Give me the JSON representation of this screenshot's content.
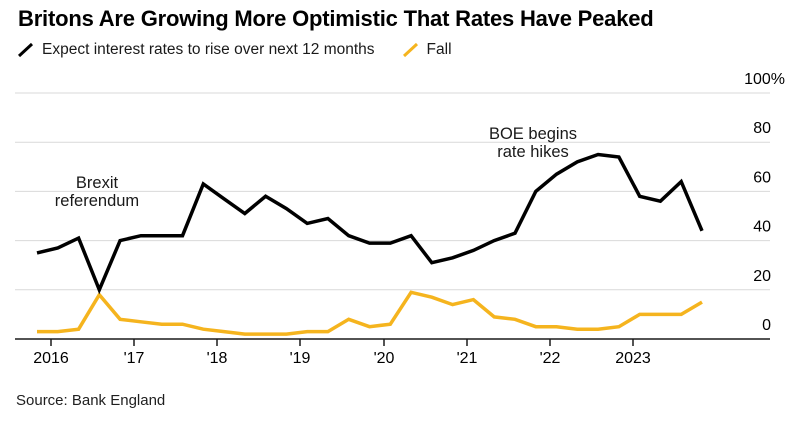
{
  "title": "Britons Are Growing More Optimistic That Rates Have Peaked",
  "legend": {
    "rise_label": "Expect interest rates to rise over next 12 months",
    "fall_label": "Fall"
  },
  "source": "Source: Bank England",
  "colors": {
    "rise_line": "#000000",
    "fall_line": "#F5B41E",
    "gridline": "#D9D9D9",
    "axis": "#1a1a1a",
    "text": "#1a1a1a"
  },
  "chart_data": {
    "type": "line",
    "title": "Britons Are Growing More Optimistic That Rates Have Peaked",
    "x": [
      "Nov 2015",
      "Feb 2016",
      "May 2016",
      "Aug 2016",
      "Nov 2016",
      "Feb 2017",
      "May 2017",
      "Aug 2017",
      "Nov 2017",
      "Feb 2018",
      "May 2018",
      "Aug 2018",
      "Nov 2018",
      "Feb 2019",
      "May 2019",
      "Aug 2019",
      "Nov 2019",
      "Feb 2020",
      "May 2020",
      "Aug 2020",
      "Nov 2020",
      "Feb 2021",
      "May 2021",
      "Aug 2021",
      "Nov 2021",
      "Feb 2022",
      "May 2022",
      "Aug 2022",
      "Nov 2022",
      "Feb 2023",
      "May 2023",
      "Aug 2023",
      "Nov 2023"
    ],
    "series": [
      {
        "name": "Expect interest rates to rise over next 12 months",
        "color": "#000000",
        "values": [
          35,
          37,
          41,
          20,
          40,
          42,
          42,
          42,
          63,
          57,
          51,
          58,
          53,
          47,
          49,
          42,
          39,
          39,
          42,
          31,
          33,
          36,
          40,
          43,
          60,
          67,
          72,
          75,
          74,
          58,
          56,
          64,
          44
        ]
      },
      {
        "name": "Fall",
        "color": "#F5B41E",
        "values": [
          3,
          3,
          4,
          18,
          8,
          7,
          6,
          6,
          4,
          3,
          2,
          2,
          2,
          3,
          3,
          8,
          5,
          6,
          19,
          17,
          14,
          16,
          9,
          8,
          5,
          5,
          4,
          4,
          5,
          10,
          10,
          10,
          15
        ]
      }
    ],
    "ylim": [
      0,
      100
    ],
    "y_unit": "%",
    "y_ticks": [
      {
        "label": "100%",
        "value": 100
      },
      {
        "label": "80",
        "value": 80
      },
      {
        "label": "60",
        "value": 60
      },
      {
        "label": "40",
        "value": 40
      },
      {
        "label": "20",
        "value": 20
      },
      {
        "label": "0",
        "value": 0
      }
    ],
    "x_ticks": [
      "2016",
      "'17",
      "'18",
      "'19",
      "'20",
      "'21",
      "'22",
      "2023"
    ],
    "grid": "horizontal",
    "legend_position": "top-left",
    "annotations": [
      {
        "text": "Brexit referendum",
        "lines": [
          "Brexit",
          "referendum"
        ]
      },
      {
        "text": "BOE begins rate hikes",
        "lines": [
          "BOE begins",
          "rate hikes"
        ]
      }
    ]
  }
}
